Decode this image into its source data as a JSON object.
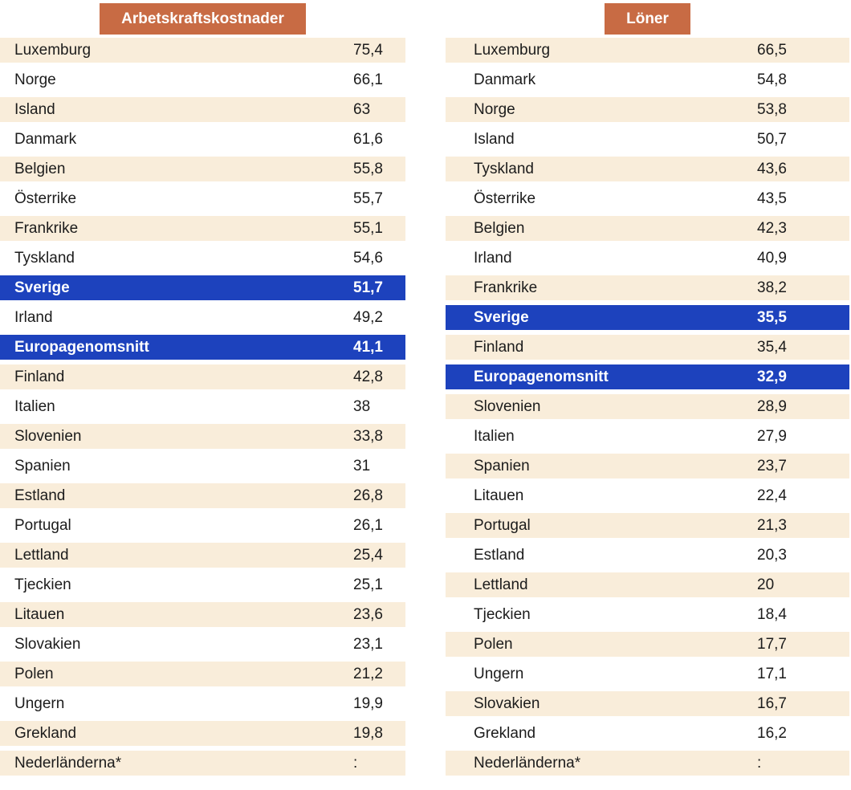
{
  "colors": {
    "badge_orange": "#c86b44",
    "highlight_blue": "#1d42bd",
    "row_shade_beige": "#f9edda",
    "text_dark": "#1c1c1c",
    "text_on_accent": "#ffffff"
  },
  "chart_data": [
    {
      "type": "table",
      "title": "Arbetskraftskostnader",
      "missing_value_symbol": ":",
      "highlighted_rows": [
        "Sverige",
        "Europagenomsnitt"
      ],
      "rows": [
        {
          "label": "Luxemburg",
          "value": "75,4",
          "variant": "shaded"
        },
        {
          "label": "Norge",
          "value": "66,1",
          "variant": "plain"
        },
        {
          "label": "Island",
          "value": "63",
          "variant": "shaded"
        },
        {
          "label": "Danmark",
          "value": "61,6",
          "variant": "plain"
        },
        {
          "label": "Belgien",
          "value": "55,8",
          "variant": "shaded"
        },
        {
          "label": "Österrike",
          "value": "55,7",
          "variant": "plain"
        },
        {
          "label": "Frankrike",
          "value": "55,1",
          "variant": "shaded"
        },
        {
          "label": "Tyskland",
          "value": "54,6",
          "variant": "plain"
        },
        {
          "label": "Sverige",
          "value": "51,7",
          "variant": "highlight"
        },
        {
          "label": "Irland",
          "value": "49,2",
          "variant": "plain"
        },
        {
          "label": "Europagenomsnitt",
          "value": "41,1",
          "variant": "highlight"
        },
        {
          "label": "Finland",
          "value": "42,8",
          "variant": "shaded"
        },
        {
          "label": "Italien",
          "value": "38",
          "variant": "plain"
        },
        {
          "label": "Slovenien",
          "value": "33,8",
          "variant": "shaded"
        },
        {
          "label": "Spanien",
          "value": "31",
          "variant": "plain"
        },
        {
          "label": "Estland",
          "value": "26,8",
          "variant": "shaded"
        },
        {
          "label": "Portugal",
          "value": "26,1",
          "variant": "plain"
        },
        {
          "label": "Lettland",
          "value": "25,4",
          "variant": "shaded"
        },
        {
          "label": "Tjeckien",
          "value": "25,1",
          "variant": "plain"
        },
        {
          "label": "Litauen",
          "value": "23,6",
          "variant": "shaded"
        },
        {
          "label": "Slovakien",
          "value": "23,1",
          "variant": "plain"
        },
        {
          "label": "Polen",
          "value": "21,2",
          "variant": "shaded"
        },
        {
          "label": "Ungern",
          "value": "19,9",
          "variant": "plain"
        },
        {
          "label": "Grekland",
          "value": "19,8",
          "variant": "shaded"
        },
        {
          "label": "Nederländerna*",
          "value": ":",
          "variant": "shaded"
        }
      ]
    },
    {
      "type": "table",
      "title": "Löner",
      "missing_value_symbol": ":",
      "highlighted_rows": [
        "Sverige",
        "Europagenomsnitt"
      ],
      "rows": [
        {
          "label": "Luxemburg",
          "value": "66,5",
          "variant": "shaded"
        },
        {
          "label": "Danmark",
          "value": "54,8",
          "variant": "plain"
        },
        {
          "label": "Norge",
          "value": "53,8",
          "variant": "shaded"
        },
        {
          "label": "Island",
          "value": "50,7",
          "variant": "plain"
        },
        {
          "label": "Tyskland",
          "value": "43,6",
          "variant": "shaded"
        },
        {
          "label": "Österrike",
          "value": "43,5",
          "variant": "plain"
        },
        {
          "label": "Belgien",
          "value": "42,3",
          "variant": "shaded"
        },
        {
          "label": "Irland",
          "value": "40,9",
          "variant": "plain"
        },
        {
          "label": "Frankrike",
          "value": "38,2",
          "variant": "shaded"
        },
        {
          "label": "Sverige",
          "value": "35,5",
          "variant": "highlight"
        },
        {
          "label": "Finland",
          "value": "35,4",
          "variant": "shaded"
        },
        {
          "label": "Europagenomsnitt",
          "value": "32,9",
          "variant": "highlight"
        },
        {
          "label": "Slovenien",
          "value": "28,9",
          "variant": "shaded"
        },
        {
          "label": "Italien",
          "value": "27,9",
          "variant": "plain"
        },
        {
          "label": "Spanien",
          "value": "23,7",
          "variant": "shaded"
        },
        {
          "label": "Litauen",
          "value": "22,4",
          "variant": "plain"
        },
        {
          "label": "Portugal",
          "value": "21,3",
          "variant": "shaded"
        },
        {
          "label": "Estland",
          "value": "20,3",
          "variant": "plain"
        },
        {
          "label": "Lettland",
          "value": "20",
          "variant": "shaded"
        },
        {
          "label": "Tjeckien",
          "value": "18,4",
          "variant": "plain"
        },
        {
          "label": "Polen",
          "value": "17,7",
          "variant": "shaded"
        },
        {
          "label": "Ungern",
          "value": "17,1",
          "variant": "plain"
        },
        {
          "label": "Slovakien",
          "value": "16,7",
          "variant": "shaded"
        },
        {
          "label": "Grekland",
          "value": "16,2",
          "variant": "plain"
        },
        {
          "label": "Nederländerna*",
          "value": ":",
          "variant": "shaded"
        }
      ]
    }
  ]
}
